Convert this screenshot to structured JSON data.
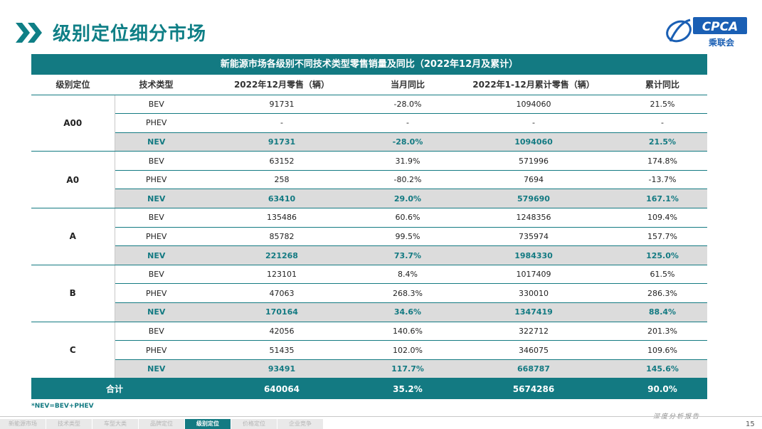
{
  "header": {
    "title": "级别定位细分市场",
    "logo_text": "CPCA",
    "logo_sub": "乘联会"
  },
  "table": {
    "title": "新能源市场各级别不同技术类型零售销量及同比（2022年12月及累计）",
    "columns": [
      "级别定位",
      "技术类型",
      "2022年12月零售（辆）",
      "当月同比",
      "2022年1-12月累计零售（辆）",
      "累计同比"
    ],
    "groups": [
      {
        "level": "A00",
        "rows": [
          {
            "type": "BEV",
            "dec": "91731",
            "dec_yoy": "-28.0%",
            "ytd": "1094060",
            "ytd_yoy": "21.5%"
          },
          {
            "type": "PHEV",
            "dec": "-",
            "dec_yoy": "-",
            "ytd": "-",
            "ytd_yoy": "-"
          },
          {
            "type": "NEV",
            "dec": "91731",
            "dec_yoy": "-28.0%",
            "ytd": "1094060",
            "ytd_yoy": "21.5%"
          }
        ]
      },
      {
        "level": "A0",
        "rows": [
          {
            "type": "BEV",
            "dec": "63152",
            "dec_yoy": "31.9%",
            "ytd": "571996",
            "ytd_yoy": "174.8%"
          },
          {
            "type": "PHEV",
            "dec": "258",
            "dec_yoy": "-80.2%",
            "ytd": "7694",
            "ytd_yoy": "-13.7%"
          },
          {
            "type": "NEV",
            "dec": "63410",
            "dec_yoy": "29.0%",
            "ytd": "579690",
            "ytd_yoy": "167.1%"
          }
        ]
      },
      {
        "level": "A",
        "rows": [
          {
            "type": "BEV",
            "dec": "135486",
            "dec_yoy": "60.6%",
            "ytd": "1248356",
            "ytd_yoy": "109.4%"
          },
          {
            "type": "PHEV",
            "dec": "85782",
            "dec_yoy": "99.5%",
            "ytd": "735974",
            "ytd_yoy": "157.7%"
          },
          {
            "type": "NEV",
            "dec": "221268",
            "dec_yoy": "73.7%",
            "ytd": "1984330",
            "ytd_yoy": "125.0%"
          }
        ]
      },
      {
        "level": "B",
        "rows": [
          {
            "type": "BEV",
            "dec": "123101",
            "dec_yoy": "8.4%",
            "ytd": "1017409",
            "ytd_yoy": "61.5%"
          },
          {
            "type": "PHEV",
            "dec": "47063",
            "dec_yoy": "268.3%",
            "ytd": "330010",
            "ytd_yoy": "286.3%"
          },
          {
            "type": "NEV",
            "dec": "170164",
            "dec_yoy": "34.6%",
            "ytd": "1347419",
            "ytd_yoy": "88.4%"
          }
        ]
      },
      {
        "level": "C",
        "rows": [
          {
            "type": "BEV",
            "dec": "42056",
            "dec_yoy": "140.6%",
            "ytd": "322712",
            "ytd_yoy": "201.3%"
          },
          {
            "type": "PHEV",
            "dec": "51435",
            "dec_yoy": "102.0%",
            "ytd": "346075",
            "ytd_yoy": "109.6%"
          },
          {
            "type": "NEV",
            "dec": "93491",
            "dec_yoy": "117.7%",
            "ytd": "668787",
            "ytd_yoy": "145.6%"
          }
        ]
      }
    ],
    "total": {
      "label": "合计",
      "dec": "640064",
      "dec_yoy": "35.2%",
      "ytd": "5674286",
      "ytd_yoy": "90.0%"
    }
  },
  "footnote": "*NEV=BEV+PHEV",
  "report_label": "深度分析报告",
  "nav": [
    "新能源市场",
    "技术类型",
    "车型大类",
    "品牌定位",
    "级别定位",
    "价格定位",
    "企业竞争"
  ],
  "nav_active": 4,
  "page_number": "15",
  "colors": {
    "accent": "#137a82",
    "title": "#0f7f86",
    "nev_row_bg": "#dcdcdc"
  }
}
